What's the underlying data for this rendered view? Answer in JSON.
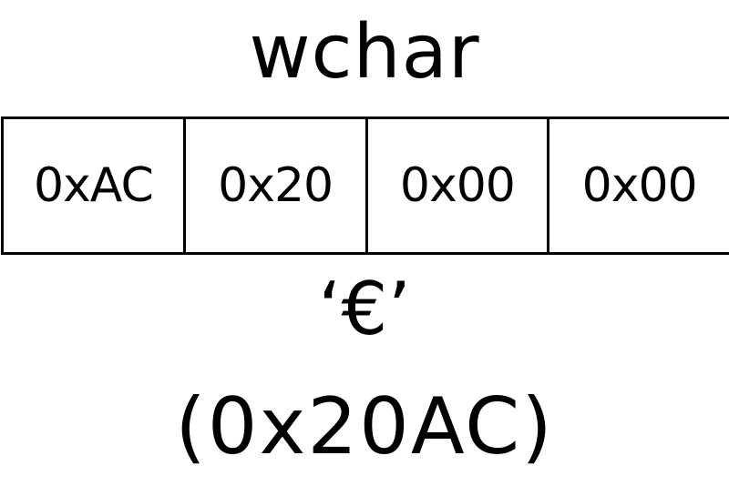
{
  "diagram": {
    "title": "wchar",
    "bytes": [
      "0xAC",
      "0x20",
      "0x00",
      "0x00"
    ],
    "character": "‘€’",
    "codepoint": "(0x20AC)"
  }
}
